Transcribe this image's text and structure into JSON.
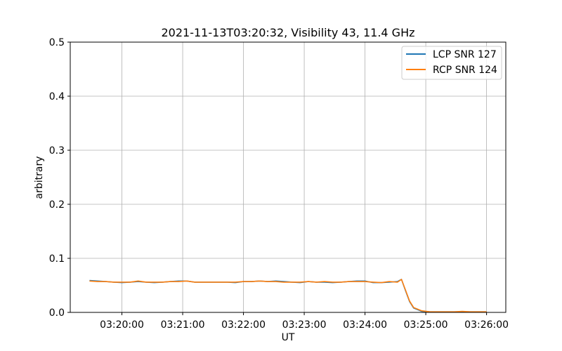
{
  "chart_data": {
    "type": "line",
    "title": "2021-11-13T03:20:32, Visibility 43, 11.4 GHz",
    "xlabel": "UT",
    "ylabel": "arbitrary",
    "xlim": [
      "03:19:09",
      "03:26:19"
    ],
    "ylim": [
      0,
      0.5
    ],
    "grid": true,
    "legend": "top-right",
    "xticks": [
      "03:20:00",
      "03:21:00",
      "03:22:00",
      "03:23:00",
      "03:24:00",
      "03:25:00",
      "03:26:00"
    ],
    "yticks": [
      "0.0",
      "0.1",
      "0.2",
      "0.3",
      "0.4",
      "0.5"
    ],
    "x": [
      "03:19:28",
      "03:19:36",
      "03:19:44",
      "03:19:52",
      "03:20:00",
      "03:20:08",
      "03:20:16",
      "03:20:24",
      "03:20:32",
      "03:20:40",
      "03:20:48",
      "03:20:56",
      "03:21:04",
      "03:21:12",
      "03:21:20",
      "03:21:28",
      "03:21:36",
      "03:21:44",
      "03:21:52",
      "03:22:00",
      "03:22:08",
      "03:22:16",
      "03:22:24",
      "03:22:32",
      "03:22:40",
      "03:22:48",
      "03:22:56",
      "03:23:04",
      "03:23:12",
      "03:23:20",
      "03:23:28",
      "03:23:36",
      "03:23:44",
      "03:23:52",
      "03:24:00",
      "03:24:08",
      "03:24:16",
      "03:24:24",
      "03:24:32",
      "03:24:36",
      "03:24:40",
      "03:24:44",
      "03:24:48",
      "03:24:56",
      "03:25:04",
      "03:25:12",
      "03:25:20",
      "03:25:28",
      "03:25:36",
      "03:25:44",
      "03:25:52",
      "03:26:00"
    ],
    "series": [
      {
        "name": "LCP SNR 127",
        "color": "#1f77b4",
        "values": [
          0.059,
          0.058,
          0.057,
          0.056,
          0.055,
          0.056,
          0.057,
          0.056,
          0.055,
          0.056,
          0.057,
          0.058,
          0.058,
          0.056,
          0.056,
          0.056,
          0.056,
          0.056,
          0.055,
          0.057,
          0.057,
          0.058,
          0.057,
          0.058,
          0.057,
          0.056,
          0.055,
          0.057,
          0.056,
          0.056,
          0.055,
          0.056,
          0.057,
          0.058,
          0.058,
          0.055,
          0.055,
          0.056,
          0.057,
          0.061,
          0.04,
          0.02,
          0.008,
          0.002,
          0.001,
          0.001,
          0.001,
          0.001,
          0.001,
          0.001,
          0.001,
          0.001
        ]
      },
      {
        "name": "RCP SNR 124",
        "color": "#ff7f0e",
        "values": [
          0.058,
          0.057,
          0.057,
          0.056,
          0.056,
          0.056,
          0.058,
          0.056,
          0.056,
          0.056,
          0.057,
          0.057,
          0.058,
          0.056,
          0.056,
          0.056,
          0.056,
          0.056,
          0.056,
          0.057,
          0.057,
          0.058,
          0.057,
          0.057,
          0.056,
          0.056,
          0.056,
          0.057,
          0.056,
          0.057,
          0.056,
          0.056,
          0.057,
          0.057,
          0.057,
          0.056,
          0.055,
          0.057,
          0.056,
          0.061,
          0.041,
          0.021,
          0.009,
          0.003,
          0.001,
          0.001,
          0.001,
          0.001,
          0.002,
          0.001,
          0.001,
          0.001
        ]
      }
    ]
  }
}
